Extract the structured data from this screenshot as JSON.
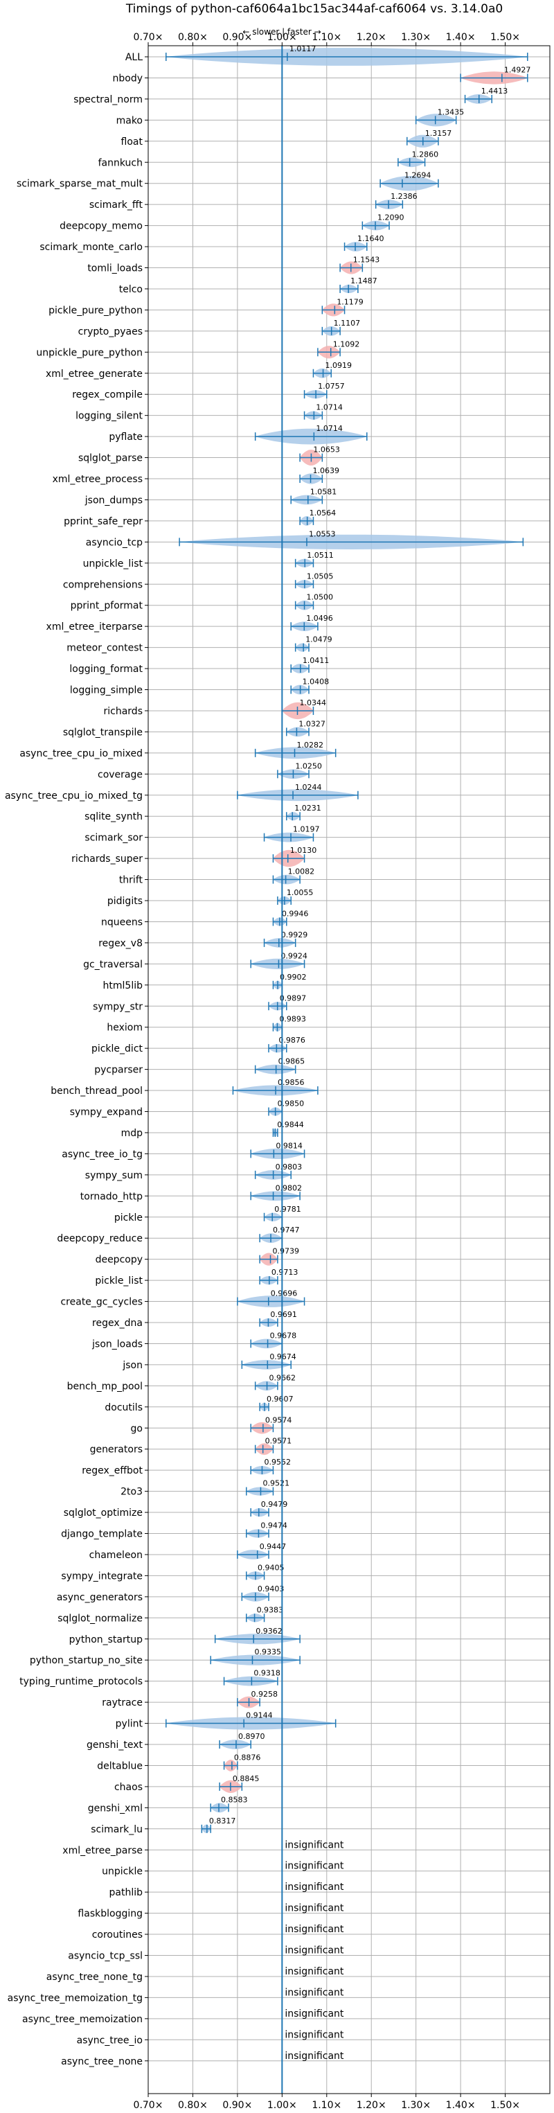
{
  "chart_data": {
    "type": "violin",
    "title": "Timings of python-caf6064a1bc15ac344af-caf6064 vs. 3.14.0a0",
    "subtitle": "← slower | faster →",
    "xlim": [
      0.7,
      1.6
    ],
    "xticks": [
      0.7,
      0.8,
      0.9,
      1.0,
      1.1,
      1.2,
      1.3,
      1.4,
      1.5
    ],
    "xtick_labels": [
      "0.70x",
      "0.80x",
      "0.90x",
      "1.00x",
      "1.10x",
      "1.20x",
      "1.30x",
      "1.40x",
      "1.50x"
    ],
    "grid": true,
    "reference_line": 1.0,
    "colors": {
      "normal": "#a8c8e8",
      "highlight": "#f4b0b0",
      "line": "#1f77b4"
    },
    "insignificant_label": "insignificant",
    "benchmarks": [
      {
        "name": "ALL",
        "value": 1.0117,
        "label": "1.0117",
        "lo": 0.74,
        "hi": 1.55,
        "width": 0.85,
        "hl": false
      },
      {
        "name": "nbody",
        "value": 1.4927,
        "label": "1.4927",
        "lo": 1.4,
        "hi": 1.55,
        "width": 0.6,
        "hl": true
      },
      {
        "name": "spectral_norm",
        "value": 1.4413,
        "label": "1.4413",
        "lo": 1.41,
        "hi": 1.47,
        "width": 0.45,
        "hl": false
      },
      {
        "name": "mako",
        "value": 1.3435,
        "label": "1.3435",
        "lo": 1.3,
        "hi": 1.39,
        "width": 0.6,
        "hl": false
      },
      {
        "name": "float",
        "value": 1.3157,
        "label": "1.3157",
        "lo": 1.28,
        "hi": 1.35,
        "width": 0.6,
        "hl": false
      },
      {
        "name": "fannkuch",
        "value": 1.286,
        "label": "1.2860",
        "lo": 1.26,
        "hi": 1.32,
        "width": 0.45,
        "hl": false
      },
      {
        "name": "scimark_sparse_mat_mult",
        "value": 1.2694,
        "label": "1.2694",
        "lo": 1.22,
        "hi": 1.35,
        "width": 0.7,
        "hl": false
      },
      {
        "name": "scimark_fft",
        "value": 1.2386,
        "label": "1.2386",
        "lo": 1.21,
        "hi": 1.27,
        "width": 0.45,
        "hl": false
      },
      {
        "name": "deepcopy_memo",
        "value": 1.209,
        "label": "1.2090",
        "lo": 1.18,
        "hi": 1.24,
        "width": 0.45,
        "hl": false
      },
      {
        "name": "scimark_monte_carlo",
        "value": 1.164,
        "label": "1.1640",
        "lo": 1.14,
        "hi": 1.19,
        "width": 0.45,
        "hl": false
      },
      {
        "name": "tomli_loads",
        "value": 1.1543,
        "label": "1.1543",
        "lo": 1.13,
        "hi": 1.18,
        "width": 0.6,
        "hl": true
      },
      {
        "name": "telco",
        "value": 1.1487,
        "label": "1.1487",
        "lo": 1.13,
        "hi": 1.17,
        "width": 0.4,
        "hl": false
      },
      {
        "name": "pickle_pure_python",
        "value": 1.1179,
        "label": "1.1179",
        "lo": 1.09,
        "hi": 1.14,
        "width": 0.6,
        "hl": true
      },
      {
        "name": "crypto_pyaes",
        "value": 1.1107,
        "label": "1.1107",
        "lo": 1.09,
        "hi": 1.13,
        "width": 0.45,
        "hl": false
      },
      {
        "name": "unpickle_pure_python",
        "value": 1.1092,
        "label": "1.1092",
        "lo": 1.08,
        "hi": 1.13,
        "width": 0.6,
        "hl": true
      },
      {
        "name": "xml_etree_generate",
        "value": 1.0919,
        "label": "1.0919",
        "lo": 1.07,
        "hi": 1.11,
        "width": 0.45,
        "hl": false
      },
      {
        "name": "regex_compile",
        "value": 1.0757,
        "label": "1.0757",
        "lo": 1.05,
        "hi": 1.1,
        "width": 0.4,
        "hl": false
      },
      {
        "name": "logging_silent",
        "value": 1.0714,
        "label": "1.0714",
        "lo": 1.05,
        "hi": 1.09,
        "width": 0.4,
        "hl": false
      },
      {
        "name": "pyflate",
        "value": 1.0714,
        "label": "1.0714",
        "lo": 0.94,
        "hi": 1.19,
        "width": 0.75,
        "hl": false
      },
      {
        "name": "sqlglot_parse",
        "value": 1.0653,
        "label": "1.0653",
        "lo": 1.04,
        "hi": 1.09,
        "width": 0.75,
        "hl": true
      },
      {
        "name": "xml_etree_process",
        "value": 1.0639,
        "label": "1.0639",
        "lo": 1.04,
        "hi": 1.09,
        "width": 0.5,
        "hl": false
      },
      {
        "name": "json_dumps",
        "value": 1.0581,
        "label": "1.0581",
        "lo": 1.02,
        "hi": 1.09,
        "width": 0.45,
        "hl": false
      },
      {
        "name": "pprint_safe_repr",
        "value": 1.0564,
        "label": "1.0564",
        "lo": 1.04,
        "hi": 1.07,
        "width": 0.45,
        "hl": false
      },
      {
        "name": "asyncio_tcp",
        "value": 1.0553,
        "label": "1.0553",
        "lo": 0.77,
        "hi": 1.54,
        "width": 0.7,
        "hl": false
      },
      {
        "name": "unpickle_list",
        "value": 1.0511,
        "label": "1.0511",
        "lo": 1.03,
        "hi": 1.07,
        "width": 0.4,
        "hl": false
      },
      {
        "name": "comprehensions",
        "value": 1.0505,
        "label": "1.0505",
        "lo": 1.03,
        "hi": 1.07,
        "width": 0.4,
        "hl": false
      },
      {
        "name": "pprint_pformat",
        "value": 1.05,
        "label": "1.0500",
        "lo": 1.03,
        "hi": 1.07,
        "width": 0.45,
        "hl": false
      },
      {
        "name": "xml_etree_iterparse",
        "value": 1.0496,
        "label": "1.0496",
        "lo": 1.02,
        "hi": 1.08,
        "width": 0.45,
        "hl": false
      },
      {
        "name": "meteor_contest",
        "value": 1.0479,
        "label": "1.0479",
        "lo": 1.03,
        "hi": 1.06,
        "width": 0.4,
        "hl": false
      },
      {
        "name": "logging_format",
        "value": 1.0411,
        "label": "1.0411",
        "lo": 1.02,
        "hi": 1.06,
        "width": 0.45,
        "hl": false
      },
      {
        "name": "logging_simple",
        "value": 1.0408,
        "label": "1.0408",
        "lo": 1.02,
        "hi": 1.06,
        "width": 0.45,
        "hl": false
      },
      {
        "name": "richards",
        "value": 1.0344,
        "label": "1.0344",
        "lo": 1.0,
        "hi": 1.07,
        "width": 0.8,
        "hl": true
      },
      {
        "name": "sqlglot_transpile",
        "value": 1.0327,
        "label": "1.0327",
        "lo": 1.01,
        "hi": 1.06,
        "width": 0.45,
        "hl": false
      },
      {
        "name": "async_tree_cpu_io_mixed",
        "value": 1.0282,
        "label": "1.0282",
        "lo": 0.94,
        "hi": 1.12,
        "width": 0.55,
        "hl": false
      },
      {
        "name": "coverage",
        "value": 1.025,
        "label": "1.0250",
        "lo": 0.99,
        "hi": 1.06,
        "width": 0.45,
        "hl": false
      },
      {
        "name": "async_tree_cpu_io_mixed_tg",
        "value": 1.0244,
        "label": "1.0244",
        "lo": 0.9,
        "hi": 1.17,
        "width": 0.55,
        "hl": false
      },
      {
        "name": "sqlite_synth",
        "value": 1.0231,
        "label": "1.0231",
        "lo": 1.01,
        "hi": 1.04,
        "width": 0.4,
        "hl": false
      },
      {
        "name": "scimark_sor",
        "value": 1.0197,
        "label": "1.0197",
        "lo": 0.96,
        "hi": 1.07,
        "width": 0.45,
        "hl": false
      },
      {
        "name": "richards_super",
        "value": 1.013,
        "label": "1.0130",
        "lo": 0.98,
        "hi": 1.05,
        "width": 0.8,
        "hl": true
      },
      {
        "name": "thrift",
        "value": 1.0082,
        "label": "1.0082",
        "lo": 0.98,
        "hi": 1.04,
        "width": 0.45,
        "hl": false
      },
      {
        "name": "pidigits",
        "value": 1.0055,
        "label": "1.0055",
        "lo": 0.99,
        "hi": 1.02,
        "width": 0.4,
        "hl": false
      },
      {
        "name": "nqueens",
        "value": 0.9946,
        "label": "0.9946",
        "lo": 0.98,
        "hi": 1.01,
        "width": 0.4,
        "hl": false
      },
      {
        "name": "regex_v8",
        "value": 0.9929,
        "label": "0.9929",
        "lo": 0.96,
        "hi": 1.03,
        "width": 0.45,
        "hl": false
      },
      {
        "name": "gc_traversal",
        "value": 0.9924,
        "label": "0.9924",
        "lo": 0.93,
        "hi": 1.05,
        "width": 0.5,
        "hl": false
      },
      {
        "name": "html5lib",
        "value": 0.9902,
        "label": "0.9902",
        "lo": 0.98,
        "hi": 1.0,
        "width": 0.4,
        "hl": false
      },
      {
        "name": "sympy_str",
        "value": 0.9897,
        "label": "0.9897",
        "lo": 0.97,
        "hi": 1.01,
        "width": 0.4,
        "hl": false
      },
      {
        "name": "hexiom",
        "value": 0.9893,
        "label": "0.9893",
        "lo": 0.98,
        "hi": 1.0,
        "width": 0.4,
        "hl": false
      },
      {
        "name": "pickle_dict",
        "value": 0.9876,
        "label": "0.9876",
        "lo": 0.97,
        "hi": 1.01,
        "width": 0.4,
        "hl": false
      },
      {
        "name": "pycparser",
        "value": 0.9865,
        "label": "0.9865",
        "lo": 0.94,
        "hi": 1.03,
        "width": 0.45,
        "hl": false
      },
      {
        "name": "bench_thread_pool",
        "value": 0.9856,
        "label": "0.9856",
        "lo": 0.89,
        "hi": 1.08,
        "width": 0.5,
        "hl": false
      },
      {
        "name": "sympy_expand",
        "value": 0.985,
        "label": "0.9850",
        "lo": 0.97,
        "hi": 1.0,
        "width": 0.4,
        "hl": false
      },
      {
        "name": "mdp",
        "value": 0.9844,
        "label": "0.9844",
        "lo": 0.98,
        "hi": 0.99,
        "width": 0.4,
        "hl": false
      },
      {
        "name": "async_tree_io_tg",
        "value": 0.9814,
        "label": "0.9814",
        "lo": 0.93,
        "hi": 1.05,
        "width": 0.5,
        "hl": false
      },
      {
        "name": "sympy_sum",
        "value": 0.9803,
        "label": "0.9803",
        "lo": 0.94,
        "hi": 1.02,
        "width": 0.45,
        "hl": false
      },
      {
        "name": "tornado_http",
        "value": 0.9802,
        "label": "0.9802",
        "lo": 0.93,
        "hi": 1.04,
        "width": 0.45,
        "hl": false
      },
      {
        "name": "pickle",
        "value": 0.9781,
        "label": "0.9781",
        "lo": 0.96,
        "hi": 1.0,
        "width": 0.4,
        "hl": false
      },
      {
        "name": "deepcopy_reduce",
        "value": 0.9747,
        "label": "0.9747",
        "lo": 0.95,
        "hi": 1.0,
        "width": 0.45,
        "hl": false
      },
      {
        "name": "deepcopy",
        "value": 0.9739,
        "label": "0.9739",
        "lo": 0.95,
        "hi": 0.99,
        "width": 0.6,
        "hl": true
      },
      {
        "name": "pickle_list",
        "value": 0.9713,
        "label": "0.9713",
        "lo": 0.95,
        "hi": 0.99,
        "width": 0.4,
        "hl": false
      },
      {
        "name": "create_gc_cycles",
        "value": 0.9696,
        "label": "0.9696",
        "lo": 0.9,
        "hi": 1.05,
        "width": 0.55,
        "hl": false
      },
      {
        "name": "regex_dna",
        "value": 0.9691,
        "label": "0.9691",
        "lo": 0.95,
        "hi": 0.99,
        "width": 0.4,
        "hl": false
      },
      {
        "name": "json_loads",
        "value": 0.9678,
        "label": "0.9678",
        "lo": 0.93,
        "hi": 1.0,
        "width": 0.45,
        "hl": false
      },
      {
        "name": "json",
        "value": 0.9674,
        "label": "0.9674",
        "lo": 0.91,
        "hi": 1.02,
        "width": 0.45,
        "hl": false
      },
      {
        "name": "bench_mp_pool",
        "value": 0.9662,
        "label": "0.9662",
        "lo": 0.94,
        "hi": 0.99,
        "width": 0.45,
        "hl": false
      },
      {
        "name": "docutils",
        "value": 0.9607,
        "label": "0.9607",
        "lo": 0.95,
        "hi": 0.97,
        "width": 0.4,
        "hl": false
      },
      {
        "name": "go",
        "value": 0.9574,
        "label": "0.9574",
        "lo": 0.93,
        "hi": 0.98,
        "width": 0.55,
        "hl": true
      },
      {
        "name": "generators",
        "value": 0.9571,
        "label": "0.9571",
        "lo": 0.94,
        "hi": 0.98,
        "width": 0.55,
        "hl": true
      },
      {
        "name": "regex_effbot",
        "value": 0.9552,
        "label": "0.9552",
        "lo": 0.93,
        "hi": 0.98,
        "width": 0.4,
        "hl": false
      },
      {
        "name": "2to3",
        "value": 0.9521,
        "label": "0.9521",
        "lo": 0.92,
        "hi": 0.98,
        "width": 0.4,
        "hl": false
      },
      {
        "name": "sqlglot_optimize",
        "value": 0.9479,
        "label": "0.9479",
        "lo": 0.93,
        "hi": 0.97,
        "width": 0.4,
        "hl": false
      },
      {
        "name": "django_template",
        "value": 0.9474,
        "label": "0.9474",
        "lo": 0.92,
        "hi": 0.97,
        "width": 0.4,
        "hl": false
      },
      {
        "name": "chameleon",
        "value": 0.9447,
        "label": "0.9447",
        "lo": 0.9,
        "hi": 0.97,
        "width": 0.45,
        "hl": false
      },
      {
        "name": "sympy_integrate",
        "value": 0.9405,
        "label": "0.9405",
        "lo": 0.92,
        "hi": 0.96,
        "width": 0.4,
        "hl": false
      },
      {
        "name": "async_generators",
        "value": 0.9403,
        "label": "0.9403",
        "lo": 0.91,
        "hi": 0.97,
        "width": 0.45,
        "hl": false
      },
      {
        "name": "sqlglot_normalize",
        "value": 0.9383,
        "label": "0.9383",
        "lo": 0.92,
        "hi": 0.96,
        "width": 0.4,
        "hl": false
      },
      {
        "name": "python_startup",
        "value": 0.9362,
        "label": "0.9362",
        "lo": 0.85,
        "hi": 1.04,
        "width": 0.5,
        "hl": false
      },
      {
        "name": "python_startup_no_site",
        "value": 0.9335,
        "label": "0.9335",
        "lo": 0.84,
        "hi": 1.04,
        "width": 0.5,
        "hl": false
      },
      {
        "name": "typing_runtime_protocols",
        "value": 0.9318,
        "label": "0.9318",
        "lo": 0.87,
        "hi": 0.99,
        "width": 0.45,
        "hl": false
      },
      {
        "name": "raytrace",
        "value": 0.9258,
        "label": "0.9258",
        "lo": 0.9,
        "hi": 0.95,
        "width": 0.55,
        "hl": true
      },
      {
        "name": "pylint",
        "value": 0.9144,
        "label": "0.9144",
        "lo": 0.74,
        "hi": 1.12,
        "width": 0.6,
        "hl": false
      },
      {
        "name": "genshi_text",
        "value": 0.897,
        "label": "0.8970",
        "lo": 0.86,
        "hi": 0.93,
        "width": 0.45,
        "hl": false
      },
      {
        "name": "deltablue",
        "value": 0.8876,
        "label": "0.8876",
        "lo": 0.87,
        "hi": 0.9,
        "width": 0.55,
        "hl": true
      },
      {
        "name": "chaos",
        "value": 0.8845,
        "label": "0.8845",
        "lo": 0.86,
        "hi": 0.91,
        "width": 0.6,
        "hl": true
      },
      {
        "name": "genshi_xml",
        "value": 0.8583,
        "label": "0.8583",
        "lo": 0.84,
        "hi": 0.88,
        "width": 0.45,
        "hl": false
      },
      {
        "name": "scimark_lu",
        "value": 0.8317,
        "label": "0.8317",
        "lo": 0.82,
        "hi": 0.84,
        "width": 0.4,
        "hl": false
      },
      {
        "name": "xml_etree_parse",
        "value": null,
        "label": "",
        "hl": false
      },
      {
        "name": "unpickle",
        "value": null,
        "label": "",
        "hl": false
      },
      {
        "name": "pathlib",
        "value": null,
        "label": "",
        "hl": false
      },
      {
        "name": "flaskblogging",
        "value": null,
        "label": "",
        "hl": false
      },
      {
        "name": "coroutines",
        "value": null,
        "label": "",
        "hl": false
      },
      {
        "name": "asyncio_tcp_ssl",
        "value": null,
        "label": "",
        "hl": false
      },
      {
        "name": "async_tree_none_tg",
        "value": null,
        "label": "",
        "hl": false
      },
      {
        "name": "async_tree_memoization_tg",
        "value": null,
        "label": "",
        "hl": false
      },
      {
        "name": "async_tree_memoization",
        "value": null,
        "label": "",
        "hl": false
      },
      {
        "name": "async_tree_io",
        "value": null,
        "label": "",
        "hl": false
      },
      {
        "name": "async_tree_none",
        "value": null,
        "label": "",
        "hl": false
      }
    ]
  }
}
